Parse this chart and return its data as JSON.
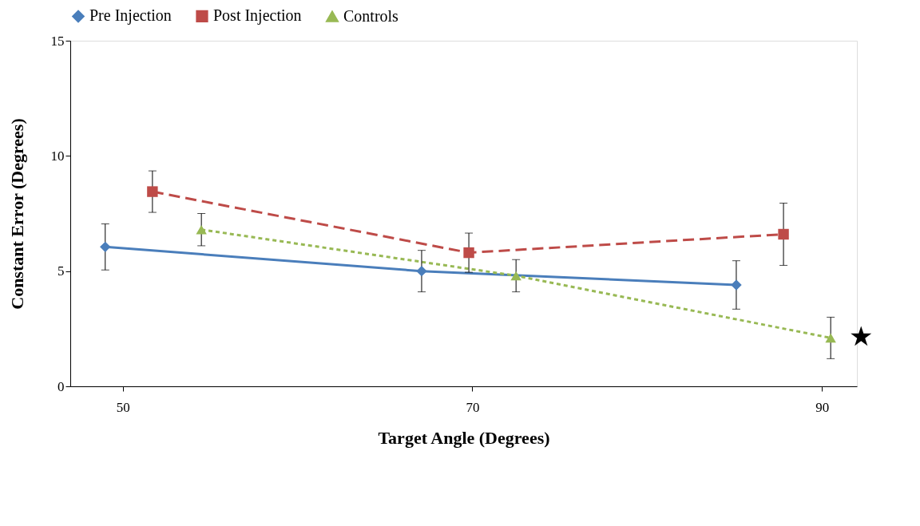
{
  "chart_data": {
    "type": "line",
    "xlabel": "Target Angle (Degrees)",
    "ylabel": "Constant Error (Degrees)",
    "xlim": [
      47,
      92
    ],
    "xticks": [
      50,
      70,
      90
    ],
    "ylim": [
      0,
      15
    ],
    "yticks": [
      0,
      5,
      10,
      15
    ],
    "grid": false,
    "legend": "top",
    "series": [
      {
        "name": "Pre Injection",
        "color": "#4a7ebb",
        "marker": "diamond",
        "line_style": "solid",
        "x": [
          49,
          67.1,
          85.1
        ],
        "values": [
          6.05,
          5.0,
          4.4
        ],
        "errors": [
          1.0,
          0.9,
          1.05
        ]
      },
      {
        "name": "Post Injection",
        "color": "#be4b48",
        "marker": "square",
        "line_style": "dashed",
        "x": [
          51.7,
          69.8,
          87.8
        ],
        "values": [
          8.45,
          5.8,
          6.6
        ],
        "errors": [
          0.9,
          0.85,
          1.35
        ]
      },
      {
        "name": "Controls",
        "color": "#98b954",
        "marker": "triangle",
        "line_style": "dotted",
        "x": [
          54.5,
          72.5,
          90.5
        ],
        "values": [
          6.8,
          4.8,
          2.1
        ],
        "errors": [
          0.7,
          0.7,
          0.9
        ]
      }
    ],
    "annotations": [
      {
        "text": "★",
        "x": 90.5,
        "y": 2.1
      }
    ]
  }
}
